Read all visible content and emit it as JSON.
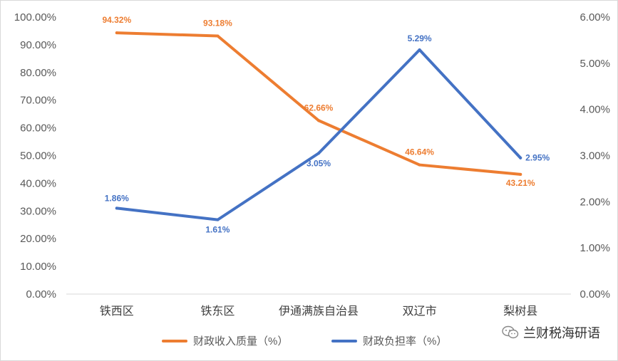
{
  "chart_data": {
    "type": "line",
    "categories": [
      "铁西区",
      "铁东区",
      "伊通满族自治县",
      "双辽市",
      "梨树县"
    ],
    "series": [
      {
        "name": "财政收入质量（%）",
        "axis": "left",
        "color": "#ED7D31",
        "values": [
          94.32,
          93.18,
          62.66,
          46.64,
          43.21
        ],
        "labels": [
          "94.32%",
          "93.18%",
          "62.66%",
          "46.64%",
          "43.21%"
        ]
      },
      {
        "name": "财政负担率（%）",
        "axis": "right",
        "color": "#4472C4",
        "values": [
          1.86,
          1.61,
          3.05,
          5.29,
          2.95
        ],
        "labels": [
          "1.86%",
          "1.61%",
          "3.05%",
          "5.29%",
          "2.95%"
        ]
      }
    ],
    "y_left": {
      "range": [
        0,
        100
      ],
      "ticks": [
        "0.00%",
        "10.00%",
        "20.00%",
        "30.00%",
        "40.00%",
        "50.00%",
        "60.00%",
        "70.00%",
        "80.00%",
        "90.00%",
        "100.00%"
      ]
    },
    "y_right": {
      "range": [
        0,
        6
      ],
      "ticks": [
        "0.00%",
        "1.00%",
        "2.00%",
        "3.00%",
        "4.00%",
        "5.00%",
        "6.00%"
      ]
    },
    "grid": false,
    "legend": "bottom"
  },
  "watermark": {
    "text": "兰财税海研语",
    "icon": "wechat-icon"
  }
}
